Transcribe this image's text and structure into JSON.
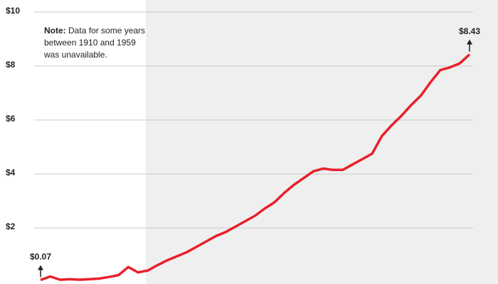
{
  "chart_data": {
    "type": "line",
    "note": {
      "label": "Note:",
      "lines": [
        "Data for some years",
        "between 1910 and 1959",
        "was unavailable."
      ]
    },
    "series": [
      {
        "color": "#e8202a",
        "values": [
          0.07,
          0.2,
          0.08,
          0.1,
          0.08,
          0.1,
          0.12,
          0.18,
          0.25,
          0.55,
          0.35,
          0.42,
          0.62,
          0.8,
          0.95,
          1.1,
          1.3,
          1.5,
          1.7,
          1.85,
          2.05,
          2.25,
          2.45,
          2.72,
          2.95,
          3.3,
          3.6,
          3.85,
          4.1,
          4.2,
          4.15,
          4.15,
          4.35,
          4.55,
          4.75,
          5.4,
          5.8,
          6.15,
          6.55,
          6.9,
          7.4,
          7.85,
          7.95,
          8.1,
          8.43
        ],
        "value_labels": [
          "$0.07",
          null,
          null,
          null,
          null,
          null,
          null,
          null,
          null,
          null,
          null,
          null,
          null,
          null,
          null,
          null,
          null,
          null,
          null,
          null,
          null,
          null,
          null,
          null,
          null,
          null,
          null,
          null,
          null,
          null,
          null,
          null,
          null,
          null,
          null,
          null,
          null,
          null,
          null,
          null,
          null,
          null,
          null,
          null,
          "$8.43"
        ]
      }
    ],
    "ylim": [
      0,
      10
    ],
    "yticks": [
      {
        "value": 2,
        "label": "$2"
      },
      {
        "value": 4,
        "label": "$4"
      },
      {
        "value": 6,
        "label": "$6"
      },
      {
        "value": 8,
        "label": "$8"
      },
      {
        "value": 10,
        "label": "$10"
      }
    ],
    "grid": true
  }
}
